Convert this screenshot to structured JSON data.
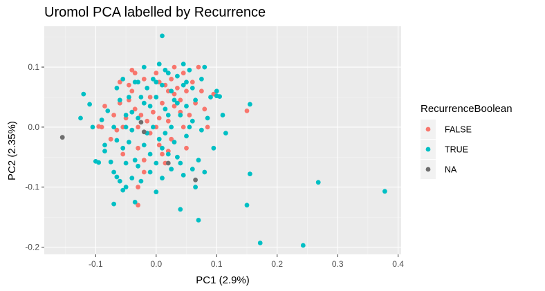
{
  "chart_data": {
    "type": "scatter",
    "title": "Uromol PCA labelled by Recurrence",
    "xlabel": "PC1 (2.9%)",
    "ylabel": "PC2 (2.35%)",
    "xlim": [
      -0.185,
      0.405
    ],
    "ylim": [
      -0.212,
      0.168
    ],
    "x_ticks": [
      -0.1,
      0.0,
      0.1,
      0.2,
      0.3,
      0.4
    ],
    "x_tick_labels": [
      "-0.1",
      "0.0",
      "0.1",
      "0.2",
      "0.3",
      "0.4"
    ],
    "y_ticks": [
      -0.2,
      -0.1,
      0.0,
      0.1
    ],
    "y_tick_labels": [
      "-0.2",
      "-0.1",
      "0.0",
      "0.1"
    ],
    "grid": true,
    "legend_position": "right",
    "legend_title": "RecurrenceBoolean",
    "series": [
      {
        "name": "FALSE",
        "color": "#F8766D",
        "points": [
          [
            -0.095,
            0.001
          ],
          [
            -0.09,
            0.0
          ],
          [
            -0.085,
            0.035
          ],
          [
            -0.07,
            0.02
          ],
          [
            -0.075,
            -0.02
          ],
          [
            -0.065,
            -0.005
          ],
          [
            -0.06,
            0.04
          ],
          [
            -0.055,
            0.0
          ],
          [
            -0.05,
            0.015
          ],
          [
            -0.045,
            0.07
          ],
          [
            -0.04,
            0.095
          ],
          [
            -0.04,
            0.06
          ],
          [
            -0.035,
            0.03
          ],
          [
            -0.03,
            0.0
          ],
          [
            -0.03,
            -0.035
          ],
          [
            -0.025,
            0.02
          ],
          [
            -0.02,
            0.08
          ],
          [
            -0.02,
            -0.055
          ],
          [
            -0.015,
            0.01
          ],
          [
            -0.01,
            -0.01
          ],
          [
            -0.005,
            0.025
          ],
          [
            0.0,
            0.09
          ],
          [
            0.0,
            0.0
          ],
          [
            0.005,
            -0.03
          ],
          [
            0.01,
            0.04
          ],
          [
            0.01,
            -0.045
          ],
          [
            0.015,
            0.07
          ],
          [
            0.02,
            0.06
          ],
          [
            0.02,
            0.01
          ],
          [
            0.025,
            0.08
          ],
          [
            0.025,
            -0.02
          ],
          [
            0.03,
            0.1
          ],
          [
            0.03,
            0.035
          ],
          [
            0.035,
            0.065
          ],
          [
            0.04,
            0.045
          ],
          [
            0.045,
            0.09
          ],
          [
            0.045,
            0.0
          ],
          [
            0.05,
            0.06
          ],
          [
            0.055,
            0.02
          ],
          [
            0.06,
            0.075
          ],
          [
            0.065,
            0.04
          ],
          [
            0.07,
            0.1
          ],
          [
            0.075,
            0.06
          ],
          [
            0.08,
            0.03
          ],
          [
            0.085,
            0.0
          ],
          [
            0.095,
            0.055
          ],
          [
            0.15,
            0.027
          ],
          [
            0.02,
            -0.04
          ],
          [
            -0.055,
            -0.045
          ],
          [
            -0.02,
            -0.075
          ],
          [
            0.005,
            0.075
          ],
          [
            0.04,
            0.025
          ],
          [
            -0.01,
            0.05
          ],
          [
            0.015,
            -0.06
          ],
          [
            -0.06,
            0.075
          ],
          [
            -0.035,
            0.09
          ],
          [
            0.05,
            -0.035
          ],
          [
            0.005,
            0.015
          ],
          [
            -0.045,
            0.045
          ],
          [
            0.03,
            0.055
          ],
          [
            -0.03,
            -0.1
          ],
          [
            -0.03,
            -0.13
          ]
        ]
      },
      {
        "name": "TRUE",
        "color": "#00BFC4",
        "points": [
          [
            -0.125,
            0.015
          ],
          [
            -0.12,
            0.055
          ],
          [
            -0.11,
            0.038
          ],
          [
            -0.105,
            0.0
          ],
          [
            -0.1,
            -0.057
          ],
          [
            -0.095,
            -0.059
          ],
          [
            -0.09,
            0.012
          ],
          [
            -0.085,
            -0.03
          ],
          [
            -0.08,
            0.027
          ],
          [
            -0.075,
            -0.058
          ],
          [
            -0.07,
            0.0
          ],
          [
            -0.07,
            -0.075
          ],
          [
            -0.065,
            -0.022
          ],
          [
            -0.065,
            -0.083
          ],
          [
            -0.06,
            0.045
          ],
          [
            -0.06,
            -0.09
          ],
          [
            -0.055,
            0.08
          ],
          [
            -0.055,
            -0.035
          ],
          [
            -0.05,
            0.0
          ],
          [
            -0.05,
            -0.06
          ],
          [
            -0.05,
            -0.1
          ],
          [
            -0.045,
            0.05
          ],
          [
            -0.045,
            -0.025
          ],
          [
            -0.04,
            -0.085
          ],
          [
            -0.04,
            0.025
          ],
          [
            -0.035,
            -0.055
          ],
          [
            -0.035,
            0.075
          ],
          [
            -0.03,
            -0.065
          ],
          [
            -0.03,
            0.015
          ],
          [
            -0.025,
            -0.09
          ],
          [
            -0.025,
            0.05
          ],
          [
            -0.02,
            -0.03
          ],
          [
            -0.02,
            0.1
          ],
          [
            -0.015,
            0.065
          ],
          [
            -0.015,
            -0.01
          ],
          [
            -0.01,
            0.035
          ],
          [
            -0.01,
            -0.045
          ],
          [
            -0.005,
            0.08
          ],
          [
            -0.005,
            0.0
          ],
          [
            0.0,
            -0.06
          ],
          [
            0.0,
            0.05
          ],
          [
            0.005,
            0.105
          ],
          [
            0.005,
            -0.02
          ],
          [
            0.01,
            0.07
          ],
          [
            0.01,
            -0.035
          ],
          [
            0.01,
            0.152
          ],
          [
            0.015,
            0.03
          ],
          [
            0.015,
            -0.01
          ],
          [
            0.02,
            0.09
          ],
          [
            0.02,
            -0.045
          ],
          [
            0.025,
            0.0
          ],
          [
            0.025,
            0.06
          ],
          [
            0.03,
            0.045
          ],
          [
            0.03,
            -0.025
          ],
          [
            0.035,
            0.085
          ],
          [
            0.035,
            -0.05
          ],
          [
            0.04,
            0.02
          ],
          [
            0.04,
            -0.06
          ],
          [
            0.045,
            0.07
          ],
          [
            0.045,
            -0.08
          ],
          [
            0.05,
            0.035
          ],
          [
            0.05,
            -0.015
          ],
          [
            0.055,
            0.095
          ],
          [
            0.055,
            0.0
          ],
          [
            0.06,
            -0.07
          ],
          [
            0.06,
            0.065
          ],
          [
            0.065,
            0.045
          ],
          [
            0.065,
            -0.1
          ],
          [
            0.07,
            -0.055
          ],
          [
            0.075,
            0.08
          ],
          [
            0.08,
            -0.075
          ],
          [
            0.085,
            0.015
          ],
          [
            0.09,
            0.05
          ],
          [
            0.095,
            -0.035
          ],
          [
            0.1,
            0.06
          ],
          [
            0.1,
            0.052
          ],
          [
            0.105,
            0.051
          ],
          [
            0.11,
            0.02
          ],
          [
            0.115,
            -0.01
          ],
          [
            0.15,
            -0.13
          ],
          [
            0.155,
            0.038
          ],
          [
            0.155,
            -0.078
          ],
          [
            0.172,
            -0.193
          ],
          [
            0.243,
            -0.197
          ],
          [
            0.268,
            -0.092
          ],
          [
            0.378,
            -0.107
          ],
          [
            0.07,
            -0.155
          ],
          [
            0.04,
            -0.137
          ],
          [
            -0.07,
            -0.128
          ],
          [
            -0.035,
            -0.125
          ],
          [
            0.0,
            -0.108
          ],
          [
            -0.065,
            0.065
          ],
          [
            -0.05,
            0.02
          ],
          [
            0.02,
            0.02
          ],
          [
            0.06,
            0.01
          ],
          [
            0.08,
            0.1
          ],
          [
            -0.02,
            0.04
          ],
          [
            0.035,
            0.04
          ],
          [
            -0.03,
            0.075
          ],
          [
            0.015,
            0.095
          ],
          [
            0.045,
            0.105
          ],
          [
            -0.04,
            -0.005
          ],
          [
            -0.01,
            -0.075
          ],
          [
            0.01,
            -0.085
          ],
          [
            0.025,
            -0.07
          ],
          [
            -0.055,
            -0.105
          ],
          [
            0.05,
            0.075
          ],
          [
            0.075,
            -0.005
          ],
          [
            -0.085,
            -0.04
          ],
          [
            0.0,
            0.075
          ]
        ]
      },
      {
        "name": "NA",
        "color": "#6E6E6E",
        "points": [
          [
            -0.155,
            -0.017
          ],
          [
            -0.025,
            0.008
          ],
          [
            -0.02,
            -0.008
          ],
          [
            0.02,
            -0.06
          ],
          [
            0.065,
            -0.088
          ]
        ]
      }
    ]
  }
}
